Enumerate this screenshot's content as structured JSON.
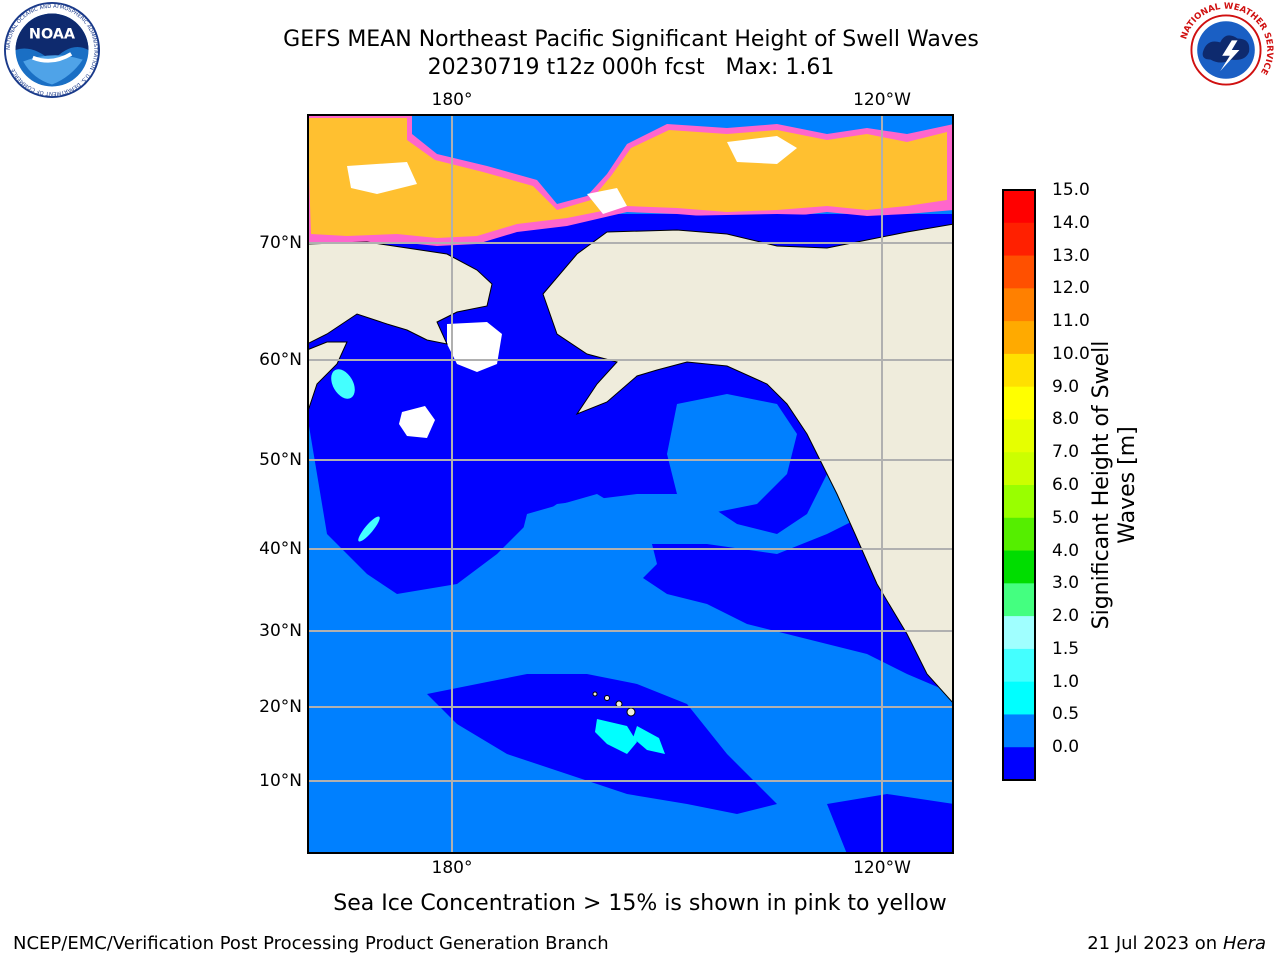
{
  "header": {
    "title_line1": "GEFS MEAN Northeast Pacific Significant Height of Swell Waves",
    "title_line2": "20230719 t12z 000h fcst   Max: 1.61"
  },
  "logos": {
    "noaa": {
      "text": "NOAA",
      "ring_text": "NATIONAL OCEANIC AND ATMOSPHERIC ADMINISTRATION · U.S. DEPARTMENT OF COMMERCE"
    },
    "nws": {
      "ring_text": "NATIONAL WEATHER SERVICE"
    }
  },
  "map": {
    "lon_labels_top": [
      "180°",
      "120°W"
    ],
    "lon_labels_bottom": [
      "180°",
      "120°W"
    ],
    "lat_labels": [
      "70°N",
      "60°N",
      "50°N",
      "40°N",
      "30°N",
      "20°N",
      "10°N"
    ],
    "colors": {
      "land": "#efecdc",
      "ocean_low": "#0000ff",
      "ocean_mid": "#0080ff",
      "cyan": "#00ffff",
      "ice_yellow": "#ffc030",
      "ice_pink": "#ff66cc",
      "grid": "#b0b0b0"
    }
  },
  "colorbar": {
    "label_line1": "Significant Height of Swell",
    "label_line2": "Waves [m]",
    "ticks": [
      "15.0",
      "14.0",
      "13.0",
      "12.0",
      "11.0",
      "10.0",
      "9.0",
      "8.0",
      "7.0",
      "6.0",
      "5.0",
      "4.0",
      "3.0",
      "2.0",
      "1.5",
      "1.0",
      "0.5",
      "0.0"
    ],
    "colors_top_to_bottom": [
      "#ff0000",
      "#ff2000",
      "#ff5000",
      "#ff8000",
      "#ffaa00",
      "#ffe000",
      "#ffff00",
      "#e6ff00",
      "#ccff00",
      "#99ff00",
      "#55ee00",
      "#00dd00",
      "#44ff80",
      "#a0ffff",
      "#44ffff",
      "#00ffff",
      "#0080ff",
      "#0000ff"
    ]
  },
  "footer": {
    "note": "Sea Ice Concentration > 15% is shown in pink to yellow",
    "left": "NCEP/EMC/Verification Post Processing Product Generation Branch",
    "right_prefix": "21 Jul 2023 on ",
    "right_machine": "Hera"
  }
}
